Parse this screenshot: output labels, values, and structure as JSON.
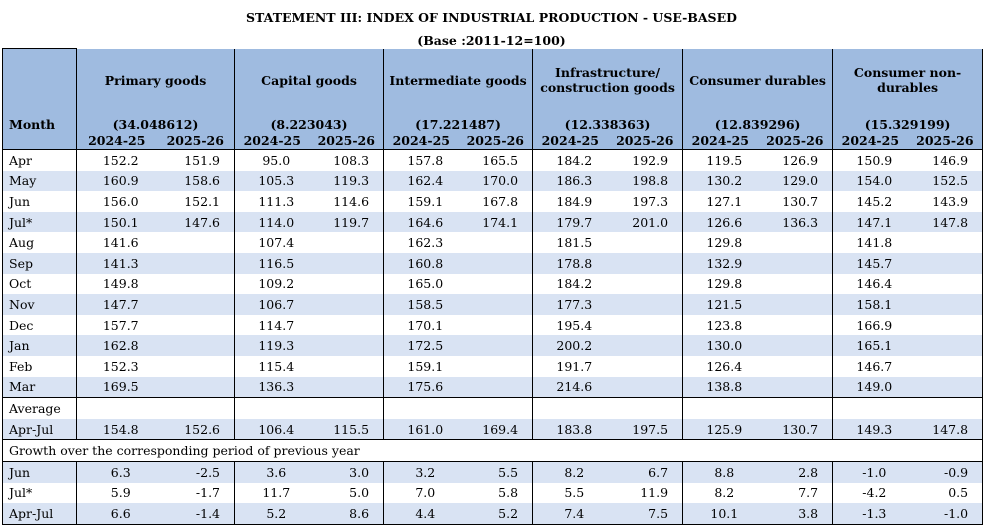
{
  "title": "STATEMENT III: INDEX OF INDUSTRIAL PRODUCTION - USE-BASED",
  "subtitle": "(Base :2011-12=100)",
  "header": {
    "month_label": "Month",
    "categories": [
      {
        "name": "Primary goods",
        "weight": "(34.048612)"
      },
      {
        "name": "Capital goods",
        "weight": "(8.223043)"
      },
      {
        "name": "Intermediate goods",
        "weight": "(17.221487)"
      },
      {
        "name": "Infrastructure/ construction goods",
        "weight": "(12.338363)"
      },
      {
        "name": "Consumer durables",
        "weight": "(12.839296)"
      },
      {
        "name": "Consumer non-durables",
        "weight": "(15.329199)"
      }
    ],
    "years": [
      "2024-25",
      "2025-26"
    ]
  },
  "monthly_rows": [
    {
      "month": "Apr",
      "values": [
        "152.2",
        "151.9",
        "95.0",
        "108.3",
        "157.8",
        "165.5",
        "184.2",
        "192.9",
        "119.5",
        "126.9",
        "150.9",
        "146.9"
      ]
    },
    {
      "month": "May",
      "values": [
        "160.9",
        "158.6",
        "105.3",
        "119.3",
        "162.4",
        "170.0",
        "186.3",
        "198.8",
        "130.2",
        "129.0",
        "154.0",
        "152.5"
      ]
    },
    {
      "month": "Jun",
      "values": [
        "156.0",
        "152.1",
        "111.3",
        "114.6",
        "159.1",
        "167.8",
        "184.9",
        "197.3",
        "127.1",
        "130.7",
        "145.2",
        "143.9"
      ]
    },
    {
      "month": "Jul*",
      "values": [
        "150.1",
        "147.6",
        "114.0",
        "119.7",
        "164.6",
        "174.1",
        "179.7",
        "201.0",
        "126.6",
        "136.3",
        "147.1",
        "147.8"
      ]
    },
    {
      "month": "Aug",
      "values": [
        "141.6",
        "",
        "107.4",
        "",
        "162.3",
        "",
        "181.5",
        "",
        "129.8",
        "",
        "141.8",
        ""
      ]
    },
    {
      "month": "Sep",
      "values": [
        "141.3",
        "",
        "116.5",
        "",
        "160.8",
        "",
        "178.8",
        "",
        "132.9",
        "",
        "145.7",
        ""
      ]
    },
    {
      "month": "Oct",
      "values": [
        "149.8",
        "",
        "109.2",
        "",
        "165.0",
        "",
        "184.2",
        "",
        "129.8",
        "",
        "146.4",
        ""
      ]
    },
    {
      "month": "Nov",
      "values": [
        "147.7",
        "",
        "106.7",
        "",
        "158.5",
        "",
        "177.3",
        "",
        "121.5",
        "",
        "158.1",
        ""
      ]
    },
    {
      "month": "Dec",
      "values": [
        "157.7",
        "",
        "114.7",
        "",
        "170.1",
        "",
        "195.4",
        "",
        "123.8",
        "",
        "166.9",
        ""
      ]
    },
    {
      "month": "Jan",
      "values": [
        "162.8",
        "",
        "119.3",
        "",
        "172.5",
        "",
        "200.2",
        "",
        "130.0",
        "",
        "165.1",
        ""
      ]
    },
    {
      "month": "Feb",
      "values": [
        "152.3",
        "",
        "115.4",
        "",
        "159.1",
        "",
        "191.7",
        "",
        "126.4",
        "",
        "146.7",
        ""
      ]
    },
    {
      "month": "Mar",
      "values": [
        "169.5",
        "",
        "136.3",
        "",
        "175.6",
        "",
        "214.6",
        "",
        "138.8",
        "",
        "149.0",
        ""
      ]
    }
  ],
  "average": {
    "label": "Average",
    "row": {
      "month": "Apr-Jul",
      "values": [
        "154.8",
        "152.6",
        "106.4",
        "115.5",
        "161.0",
        "169.4",
        "183.8",
        "197.5",
        "125.9",
        "130.7",
        "149.3",
        "147.8"
      ]
    }
  },
  "growth": {
    "label": "Growth over the corresponding period of previous year",
    "rows": [
      {
        "month": "Jun",
        "values": [
          "6.3",
          "-2.5",
          "3.6",
          "3.0",
          "3.2",
          "5.5",
          "8.2",
          "6.7",
          "8.8",
          "2.8",
          "-1.0",
          "-0.9"
        ]
      },
      {
        "month": "Jul*",
        "values": [
          "5.9",
          "-1.7",
          "11.7",
          "5.0",
          "7.0",
          "5.8",
          "5.5",
          "11.9",
          "8.2",
          "7.7",
          "-4.2",
          "0.5"
        ]
      },
      {
        "month": "Apr-Jul",
        "values": [
          "6.6",
          "-1.4",
          "5.2",
          "8.6",
          "4.4",
          "5.2",
          "7.4",
          "7.5",
          "10.1",
          "3.8",
          "-1.3",
          "-1.0"
        ]
      }
    ]
  }
}
